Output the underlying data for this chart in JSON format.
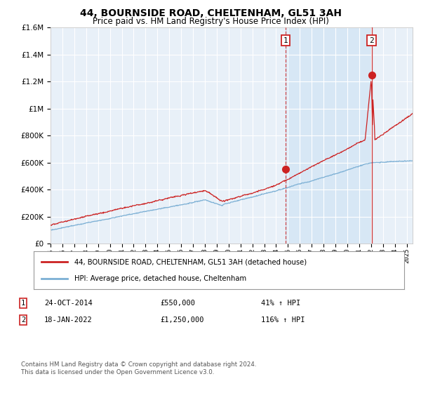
{
  "title": "44, BOURNSIDE ROAD, CHELTENHAM, GL51 3AH",
  "subtitle": "Price paid vs. HM Land Registry's House Price Index (HPI)",
  "title_fontsize": 10,
  "subtitle_fontsize": 8.5,
  "legend_line1": "44, BOURNSIDE ROAD, CHELTENHAM, GL51 3AH (detached house)",
  "legend_line2": "HPI: Average price, detached house, Cheltenham",
  "sale1_date": 2014.82,
  "sale1_price": 550000,
  "sale1_display": "24-OCT-2014",
  "sale1_amount": "£550,000",
  "sale1_hpi": "41% ↑ HPI",
  "sale2_date": 2022.05,
  "sale2_price": 1250000,
  "sale2_display": "18-JAN-2022",
  "sale2_amount": "£1,250,000",
  "sale2_hpi": "116% ↑ HPI",
  "red_color": "#CC2222",
  "blue_color": "#7BAFD4",
  "shade_color": "#D0E4F5",
  "bg_color": "#E8F0F8",
  "grid_color": "#FFFFFF",
  "ylim": [
    0,
    1600000
  ],
  "xlim_start": 1995,
  "xlim_end": 2025.5,
  "footer": "Contains HM Land Registry data © Crown copyright and database right 2024.\nThis data is licensed under the Open Government Licence v3.0."
}
